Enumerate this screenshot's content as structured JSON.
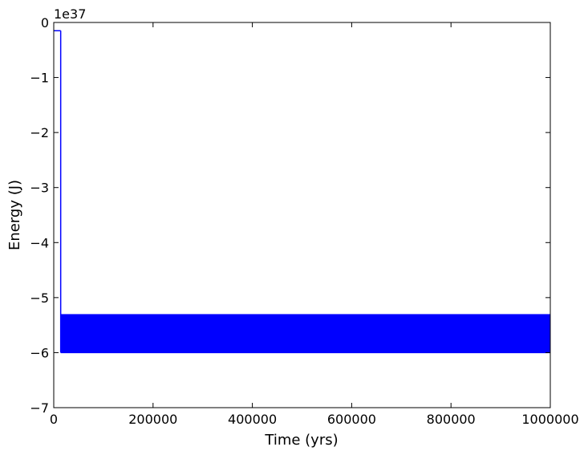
{
  "chart_data": {
    "type": "line",
    "title": "",
    "xlabel": "Time (yrs)",
    "ylabel": "Energy (J)",
    "y_offset_label": "1e37",
    "xlim": [
      0,
      1000000
    ],
    "ylim": [
      -7,
      0
    ],
    "x_ticks": [
      0,
      200000,
      400000,
      600000,
      800000,
      1000000
    ],
    "x_tick_labels": [
      "0",
      "200000",
      "400000",
      "600000",
      "800000",
      "1000000"
    ],
    "y_ticks": [
      0,
      -1,
      -2,
      -3,
      -4,
      -5,
      -6,
      -7
    ],
    "y_tick_labels": [
      "0",
      "−1",
      "−2",
      "−3",
      "−4",
      "−5",
      "−6",
      "−7"
    ],
    "grid": false,
    "series": [
      {
        "color": "#0000ff",
        "initial_segment": {
          "x": [
            0,
            14000
          ],
          "y": [
            -0.15,
            -0.15
          ]
        },
        "drop": {
          "x": 14000,
          "y_from": -0.15,
          "y_to": -6.0
        },
        "oscillation": {
          "x_start": 14000,
          "x_end": 1000000,
          "y_upper": -5.3,
          "y_lower": -6.0
        }
      }
    ]
  }
}
